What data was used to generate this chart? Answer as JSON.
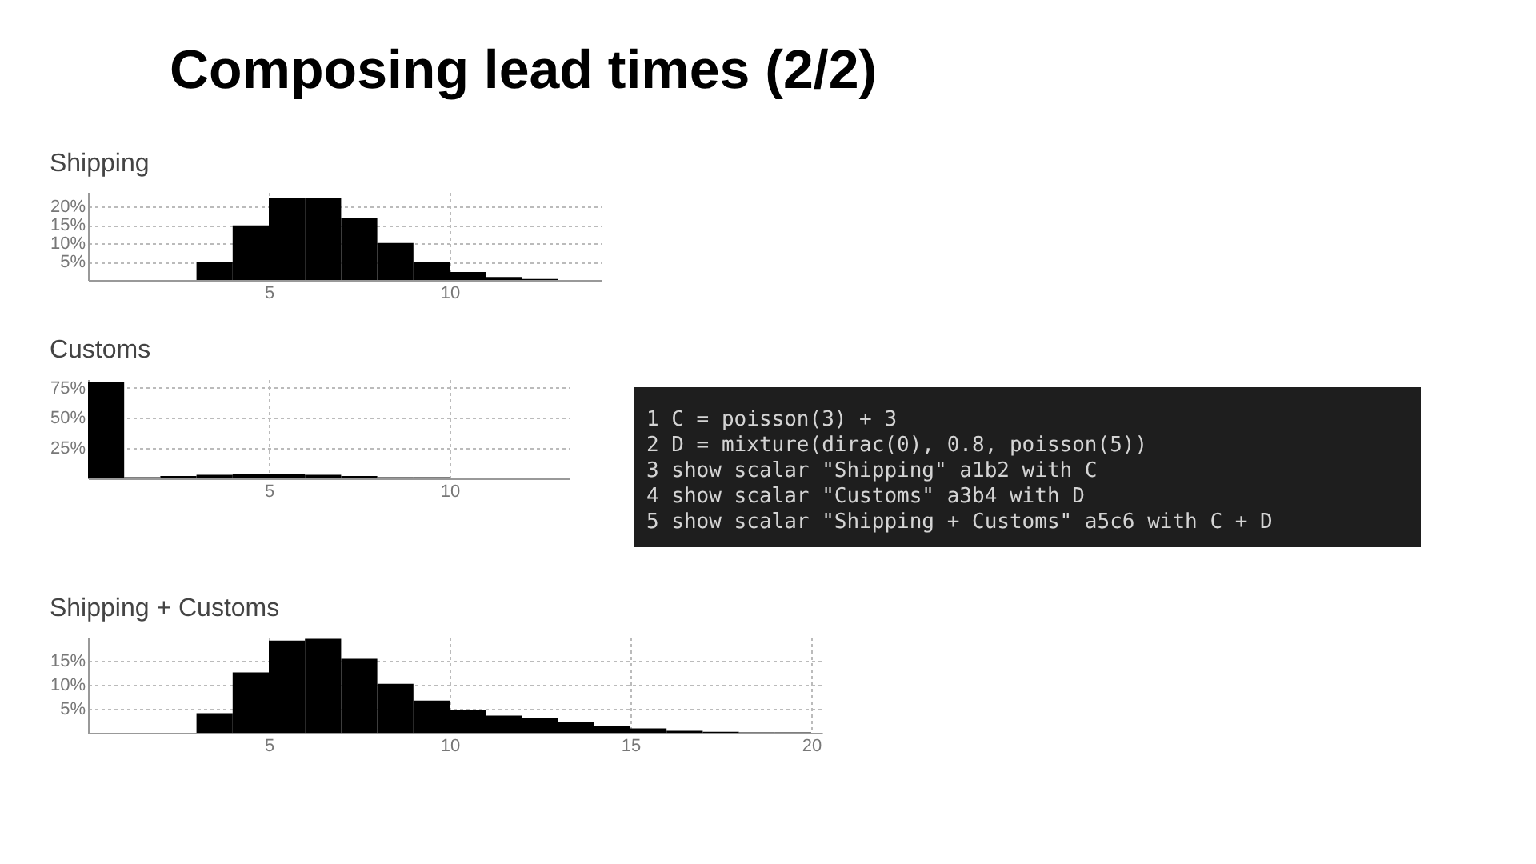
{
  "chart_data": [
    {
      "type": "histogram",
      "title": "Shipping",
      "bins": [
        3,
        4,
        5,
        6,
        7,
        8,
        9,
        10,
        11,
        12,
        13
      ],
      "values": [
        5,
        14.9,
        22.4,
        22.4,
        16.8,
        10.1,
        5,
        2.2,
        0.8,
        0.3
      ],
      "color": "#000000",
      "xlim": [
        0,
        14.2
      ],
      "xticks": [
        5,
        10
      ],
      "ylim": [
        0,
        24
      ],
      "yticks": [
        {
          "value": 5,
          "label": "5%"
        },
        {
          "value": 10,
          "label": "10%"
        },
        {
          "value": 15,
          "label": "15%"
        },
        {
          "value": 20,
          "label": "20%"
        }
      ],
      "grid": true
    },
    {
      "type": "histogram",
      "title": "Customs",
      "bins": [
        0,
        1,
        2,
        3,
        4,
        5,
        6,
        7,
        8,
        9,
        10,
        11
      ],
      "values": [
        80,
        1,
        2,
        3,
        4,
        4,
        3,
        2,
        1,
        1,
        0
      ],
      "color": "#000000",
      "xlim": [
        0,
        13.3
      ],
      "xticks": [
        5,
        10
      ],
      "ylim": [
        0,
        82
      ],
      "yticks": [
        {
          "value": 25,
          "label": "25%"
        },
        {
          "value": 50,
          "label": "50%"
        },
        {
          "value": 75,
          "label": "75%"
        }
      ],
      "grid": true
    },
    {
      "type": "histogram",
      "title": "Shipping + Customs",
      "bins": [
        3,
        4,
        5,
        6,
        7,
        8,
        9,
        10,
        11,
        12,
        13,
        14,
        15,
        16,
        17,
        18,
        19,
        20
      ],
      "values": [
        4.1,
        12.6,
        19.2,
        19.6,
        15.4,
        10.2,
        6.7,
        4.7,
        3.6,
        3.0,
        2.2,
        1.4,
        0.9,
        0.4,
        0.2,
        0.1,
        0.1
      ],
      "color": "#000000",
      "xlim": [
        0,
        20.3
      ],
      "xticks": [
        5,
        10,
        15,
        20
      ],
      "ylim": [
        0,
        20
      ],
      "yticks": [
        {
          "value": 5,
          "label": "5%"
        },
        {
          "value": 10,
          "label": "10%"
        },
        {
          "value": 15,
          "label": "15%"
        }
      ],
      "grid": true
    },
    {
      "type": "other",
      "title": "Composing lead times (2/2)",
      "annotations": [
        "1    C = poisson(3) + 3",
        "2    D = mixture(dirac(0), 0.8, poisson(5))",
        "3    show scalar \"Shipping\" a1b2 with C",
        "4    show scalar \"Customs\" a3b4 with D",
        "5    show scalar \"Shipping + Customs\" a5c6 with C + D"
      ]
    }
  ]
}
